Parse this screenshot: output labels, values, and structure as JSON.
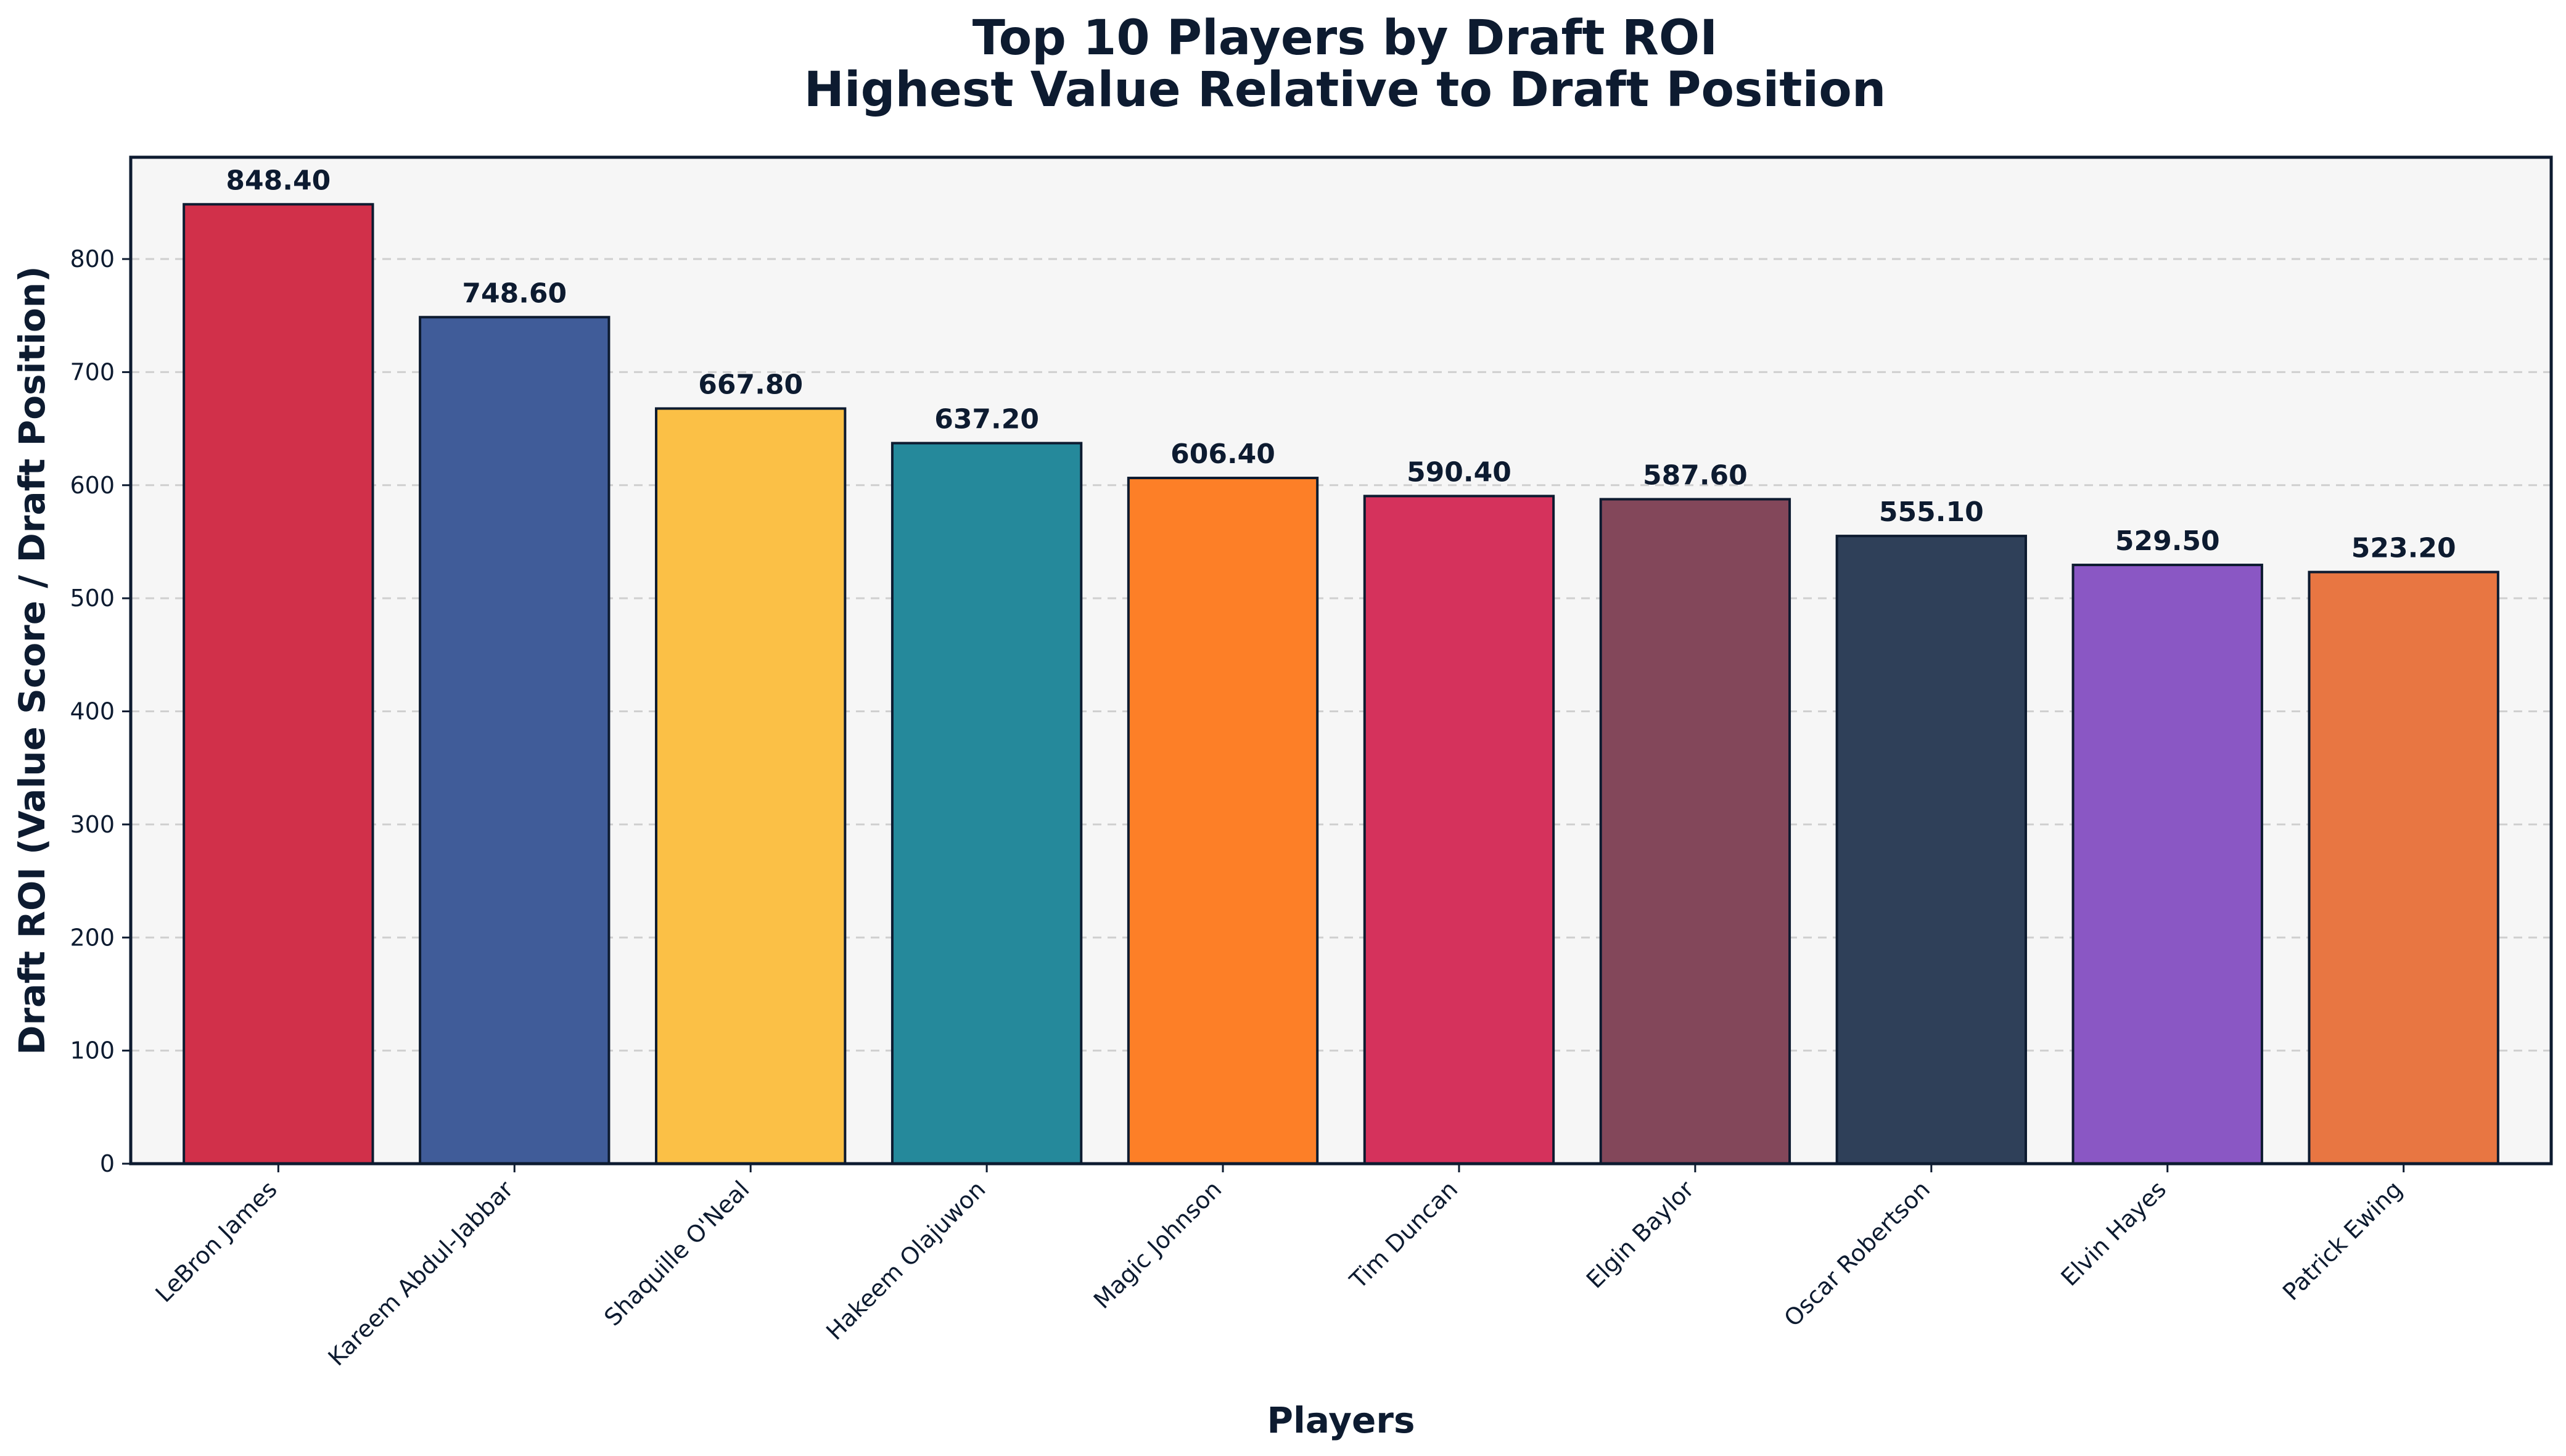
{
  "chart_data": {
    "type": "bar",
    "title_line1": "Top 10 Players by Draft ROI",
    "title_line2": "Highest Value Relative to Draft Position",
    "xlabel": "Players",
    "ylabel": "Draft ROI (Value Score / Draft Position)",
    "categories": [
      "LeBron James",
      "Kareem Abdul-Jabbar",
      "Shaquille O'Neal",
      "Hakeem Olajuwon",
      "Magic Johnson",
      "Tim Duncan",
      "Elgin Baylor",
      "Oscar Robertson",
      "Elvin Hayes",
      "Patrick Ewing"
    ],
    "values": [
      848.4,
      748.6,
      667.8,
      637.2,
      606.4,
      590.4,
      587.6,
      555.1,
      529.5,
      523.2
    ],
    "value_labels": [
      "848.40",
      "748.60",
      "667.80",
      "637.20",
      "606.40",
      "590.40",
      "587.60",
      "555.10",
      "529.50",
      "523.20"
    ],
    "colors": [
      "#d1304a",
      "#405c99",
      "#fbc046",
      "#25899b",
      "#fd7f27",
      "#d5325c",
      "#83475a",
      "#2f4059",
      "#8a57c4",
      "#e87642"
    ],
    "ylim": [
      0,
      890
    ],
    "yticks": [
      0,
      100,
      200,
      300,
      400,
      500,
      600,
      700,
      800
    ],
    "grid": "y-dashed",
    "legend": "none",
    "plot_background": "#f6f6f6",
    "axis_color": "#0d1b30"
  }
}
